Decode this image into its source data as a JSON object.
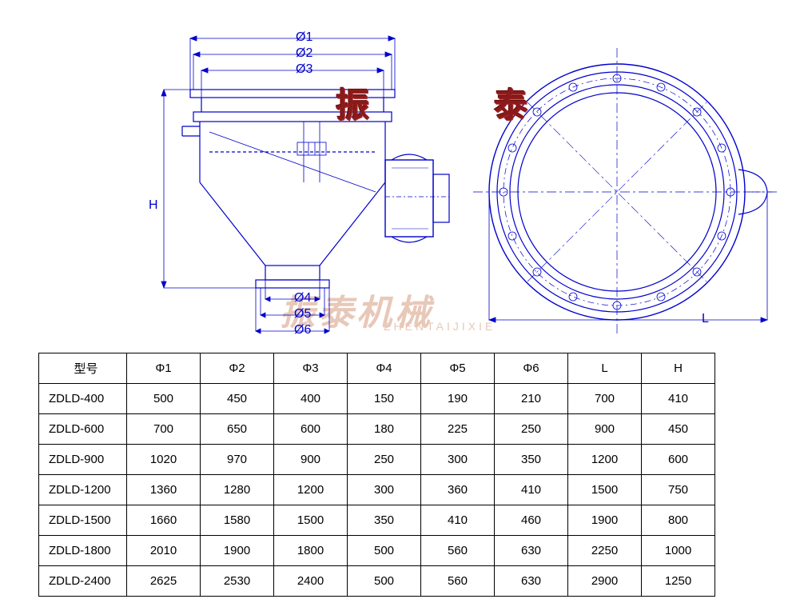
{
  "diagram": {
    "stroke_color": "#0000cc",
    "stroke_width": 1.2,
    "thin_width": 0.8,
    "labels": {
      "phi1": "Ø1",
      "phi2": "Ø2",
      "phi3": "Ø3",
      "phi4": "Ø4",
      "phi5": "Ø5",
      "phi6": "Ø6",
      "H": "H",
      "L": "L"
    },
    "watermark_main": "振泰机械",
    "watermark_sub": "ZHENTAIJIXIE",
    "watermark_char1": "振",
    "watermark_char2": "泰",
    "watermark_color": "#8b1a1a",
    "watermark_bg_color": "#e8c8b8"
  },
  "table": {
    "columns": [
      "型号",
      "Φ1",
      "Φ2",
      "Φ3",
      "Φ4",
      "Φ5",
      "Φ6",
      "L",
      "H"
    ],
    "rows": [
      [
        "ZDLD-400",
        "500",
        "450",
        "400",
        "150",
        "190",
        "210",
        "700",
        "410"
      ],
      [
        "ZDLD-600",
        "700",
        "650",
        "600",
        "180",
        "225",
        "250",
        "900",
        "450"
      ],
      [
        "ZDLD-900",
        "1020",
        "970",
        "900",
        "250",
        "300",
        "350",
        "1200",
        "600"
      ],
      [
        "ZDLD-1200",
        "1360",
        "1280",
        "1200",
        "300",
        "360",
        "410",
        "1500",
        "750"
      ],
      [
        "ZDLD-1500",
        "1660",
        "1580",
        "1500",
        "350",
        "410",
        "460",
        "1900",
        "800"
      ],
      [
        "ZDLD-1800",
        "2010",
        "1900",
        "1800",
        "500",
        "560",
        "630",
        "2250",
        "1000"
      ],
      [
        "ZDLD-2400",
        "2625",
        "2530",
        "2400",
        "500",
        "560",
        "630",
        "2900",
        "1250"
      ]
    ],
    "header_fontsize": 15,
    "cell_fontsize": 15,
    "border_color": "#000000"
  }
}
